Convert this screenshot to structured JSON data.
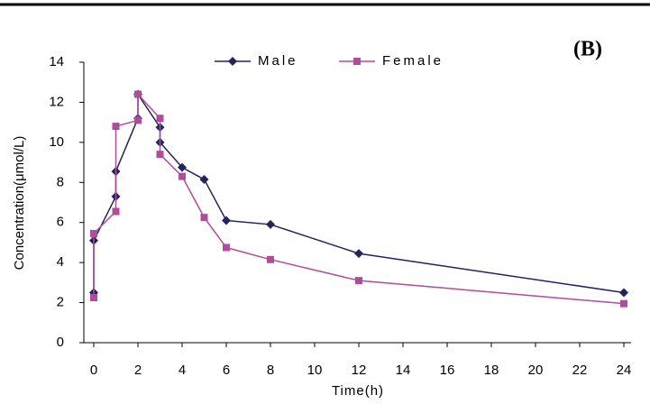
{
  "chart_data": {
    "type": "line",
    "title": "(B)",
    "x_label": "Time(h)",
    "y_label": "Concentration(μmol/L)",
    "x": [
      0,
      0,
      1,
      1,
      2,
      2,
      3,
      3,
      4,
      5,
      6,
      8,
      12,
      24
    ],
    "series": [
      {
        "name": "Male",
        "color": "#23235f",
        "marker": "diamond",
        "values": [
          2.5,
          5.1,
          7.3,
          8.55,
          11.2,
          12.4,
          10.75,
          10.0,
          8.75,
          8.15,
          6.1,
          5.9,
          4.45,
          2.5
        ]
      },
      {
        "name": "Female",
        "color": "#b04c9c",
        "marker": "square",
        "values": [
          2.25,
          5.45,
          6.55,
          10.8,
          11.1,
          12.4,
          11.2,
          9.4,
          8.3,
          6.25,
          4.75,
          4.15,
          3.1,
          1.95
        ]
      }
    ],
    "xlim": [
      0,
      24
    ],
    "ylim": [
      0,
      14
    ],
    "xticks": [
      0,
      2,
      4,
      6,
      8,
      10,
      12,
      14,
      16,
      18,
      20,
      22,
      24
    ],
    "yticks": [
      0,
      2,
      4,
      6,
      8,
      10,
      12,
      14
    ],
    "grid": false,
    "legend": "top"
  }
}
